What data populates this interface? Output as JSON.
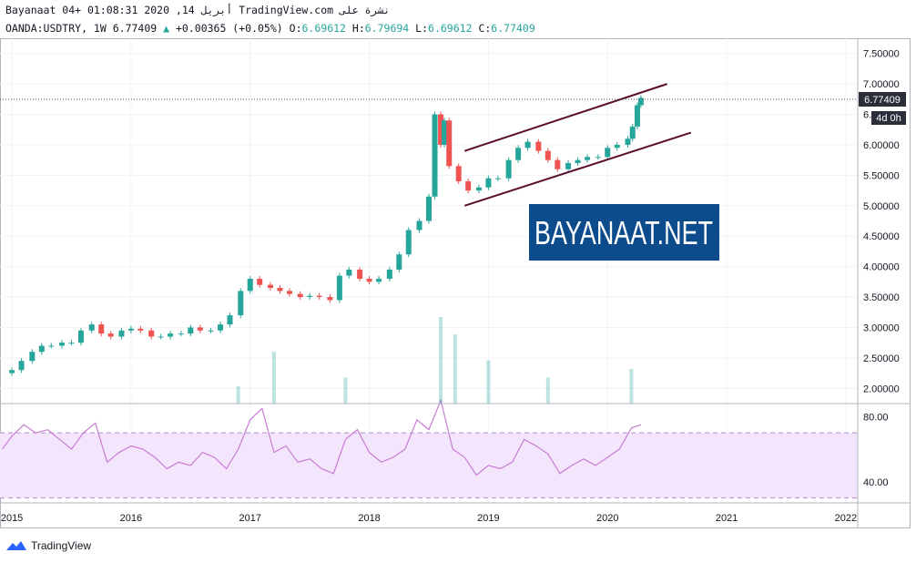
{
  "header": {
    "line1": "Bayanaat 04+ 01:08:31 2020 ,14 أبريل TradingView.com نشرة على",
    "symbol": "OANDA:USDTRY, 1W",
    "last": "6.77409",
    "change": "+0.00365 (+0.05%)",
    "o_label": "O:",
    "o_value": "6.69612",
    "h_label": "H:",
    "h_value": "6.79694",
    "l_label": "L:",
    "l_value": "6.69612",
    "c_label": "C:",
    "c_value": "6.77409"
  },
  "watermark": "BAYANAAT.NET",
  "price_tag": {
    "value": "6.77409",
    "countdown": "4d 0h"
  },
  "footer": {
    "brand": "TradingView"
  },
  "colors": {
    "up": "#26a69a",
    "down": "#ef5350",
    "channel": "#5b0f2e",
    "rsi_line": "#c77dd4",
    "rsi_band": "#f3e5fb",
    "watermark_bg": "#0d4c8c",
    "last_price_tag": "#2a2e39"
  },
  "chart_data": [
    {
      "type": "candlestick",
      "title": "OANDA:USDTRY, 1W",
      "y_ticks": [
        "7.50000",
        "7.00000",
        "6.50000",
        "6.00000",
        "5.50000",
        "5.00000",
        "4.50000",
        "4.00000",
        "3.50000",
        "3.00000",
        "2.50000",
        "2.00000"
      ],
      "x_ticks": [
        "2015",
        "2016",
        "2017",
        "2018",
        "2019",
        "2020",
        "2021",
        "2022"
      ],
      "ylim": [
        1.75,
        7.75
      ],
      "xlim": [
        2014.9,
        2022.1
      ],
      "grid": true,
      "last_price": 6.77409,
      "series": [
        {
          "name": "price",
          "x": [
            2014.92,
            2015.0,
            2015.08,
            2015.17,
            2015.25,
            2015.33,
            2015.42,
            2015.5,
            2015.58,
            2015.67,
            2015.75,
            2015.83,
            2015.92,
            2016.0,
            2016.08,
            2016.17,
            2016.25,
            2016.33,
            2016.42,
            2016.5,
            2016.58,
            2016.67,
            2016.75,
            2016.83,
            2016.92,
            2017.0,
            2017.08,
            2017.17,
            2017.25,
            2017.33,
            2017.42,
            2017.5,
            2017.58,
            2017.67,
            2017.75,
            2017.83,
            2017.92,
            2018.0,
            2018.08,
            2018.17,
            2018.25,
            2018.33,
            2018.42,
            2018.5,
            2018.55,
            2018.6,
            2018.63,
            2018.67,
            2018.75,
            2018.83,
            2018.92,
            2019.0,
            2019.08,
            2019.17,
            2019.25,
            2019.33,
            2019.42,
            2019.5,
            2019.58,
            2019.67,
            2019.75,
            2019.83,
            2019.92,
            2020.0,
            2020.08,
            2020.17,
            2020.21,
            2020.25,
            2020.28
          ],
          "values": [
            2.25,
            2.3,
            2.45,
            2.6,
            2.7,
            2.7,
            2.75,
            2.75,
            2.95,
            3.05,
            2.9,
            2.85,
            2.95,
            2.98,
            2.95,
            2.85,
            2.85,
            2.9,
            2.9,
            3.0,
            2.95,
            2.95,
            3.05,
            3.2,
            3.6,
            3.8,
            3.7,
            3.65,
            3.6,
            3.55,
            3.5,
            3.52,
            3.5,
            3.45,
            3.85,
            3.95,
            3.8,
            3.75,
            3.8,
            3.95,
            4.2,
            4.6,
            4.75,
            5.15,
            6.5,
            6.0,
            6.4,
            5.65,
            5.4,
            5.25,
            5.3,
            5.45,
            5.45,
            5.75,
            5.95,
            6.05,
            5.9,
            5.75,
            5.6,
            5.7,
            5.75,
            5.8,
            5.8,
            5.95,
            6.0,
            6.1,
            6.3,
            6.65,
            6.77
          ]
        },
        {
          "name": "volume",
          "x": [
            2016.9,
            2017.2,
            2017.8,
            2018.6,
            2018.72,
            2019.0,
            2019.5,
            2020.2
          ],
          "values": [
            0.2,
            0.6,
            0.3,
            1.0,
            0.8,
            0.5,
            0.3,
            0.4
          ]
        }
      ],
      "annotations": [
        {
          "type": "trendline",
          "x": [
            2018.8,
            2020.5
          ],
          "y": [
            5.9,
            7.0
          ]
        },
        {
          "type": "trendline",
          "x": [
            2018.8,
            2020.7
          ],
          "y": [
            5.0,
            6.2
          ]
        }
      ]
    },
    {
      "type": "line",
      "title": "RSI",
      "y_ticks": [
        "80.00",
        "40.00"
      ],
      "ylim": [
        27,
        88
      ],
      "band": [
        30,
        70
      ],
      "series": [
        {
          "name": "rsi",
          "x": [
            2014.92,
            2015.0,
            2015.1,
            2015.2,
            2015.3,
            2015.4,
            2015.5,
            2015.6,
            2015.7,
            2015.8,
            2015.9,
            2016.0,
            2016.1,
            2016.2,
            2016.3,
            2016.4,
            2016.5,
            2016.6,
            2016.7,
            2016.8,
            2016.9,
            2017.0,
            2017.1,
            2017.2,
            2017.3,
            2017.4,
            2017.5,
            2017.6,
            2017.7,
            2017.8,
            2017.9,
            2018.0,
            2018.1,
            2018.2,
            2018.3,
            2018.4,
            2018.5,
            2018.6,
            2018.7,
            2018.8,
            2018.9,
            2019.0,
            2019.1,
            2019.2,
            2019.3,
            2019.4,
            2019.5,
            2019.6,
            2019.7,
            2019.8,
            2019.9,
            2020.0,
            2020.1,
            2020.2,
            2020.28
          ],
          "values": [
            60,
            68,
            75,
            70,
            72,
            66,
            60,
            70,
            76,
            52,
            58,
            62,
            60,
            55,
            48,
            52,
            50,
            58,
            55,
            48,
            60,
            78,
            85,
            58,
            62,
            52,
            54,
            48,
            45,
            66,
            72,
            58,
            52,
            55,
            60,
            78,
            72,
            90,
            60,
            55,
            44,
            50,
            48,
            52,
            66,
            62,
            57,
            45,
            50,
            54,
            50,
            55,
            60,
            73,
            75
          ]
        }
      ]
    }
  ]
}
